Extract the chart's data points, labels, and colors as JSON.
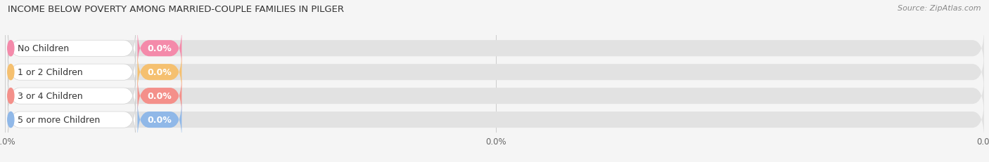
{
  "title": "INCOME BELOW POVERTY AMONG MARRIED-COUPLE FAMILIES IN PILGER",
  "source": "Source: ZipAtlas.com",
  "categories": [
    "No Children",
    "1 or 2 Children",
    "3 or 4 Children",
    "5 or more Children"
  ],
  "values": [
    0.0,
    0.0,
    0.0,
    0.0
  ],
  "bar_colors": [
    "#f48aaa",
    "#f5c070",
    "#f4908a",
    "#90b8e8"
  ],
  "background_color": "#f5f5f5",
  "bar_bg_color": "#e2e2e2",
  "xlim": [
    0,
    100
  ],
  "title_fontsize": 9.5,
  "source_fontsize": 8,
  "label_fontsize": 9,
  "val_fontsize": 9,
  "tick_fontsize": 8.5
}
